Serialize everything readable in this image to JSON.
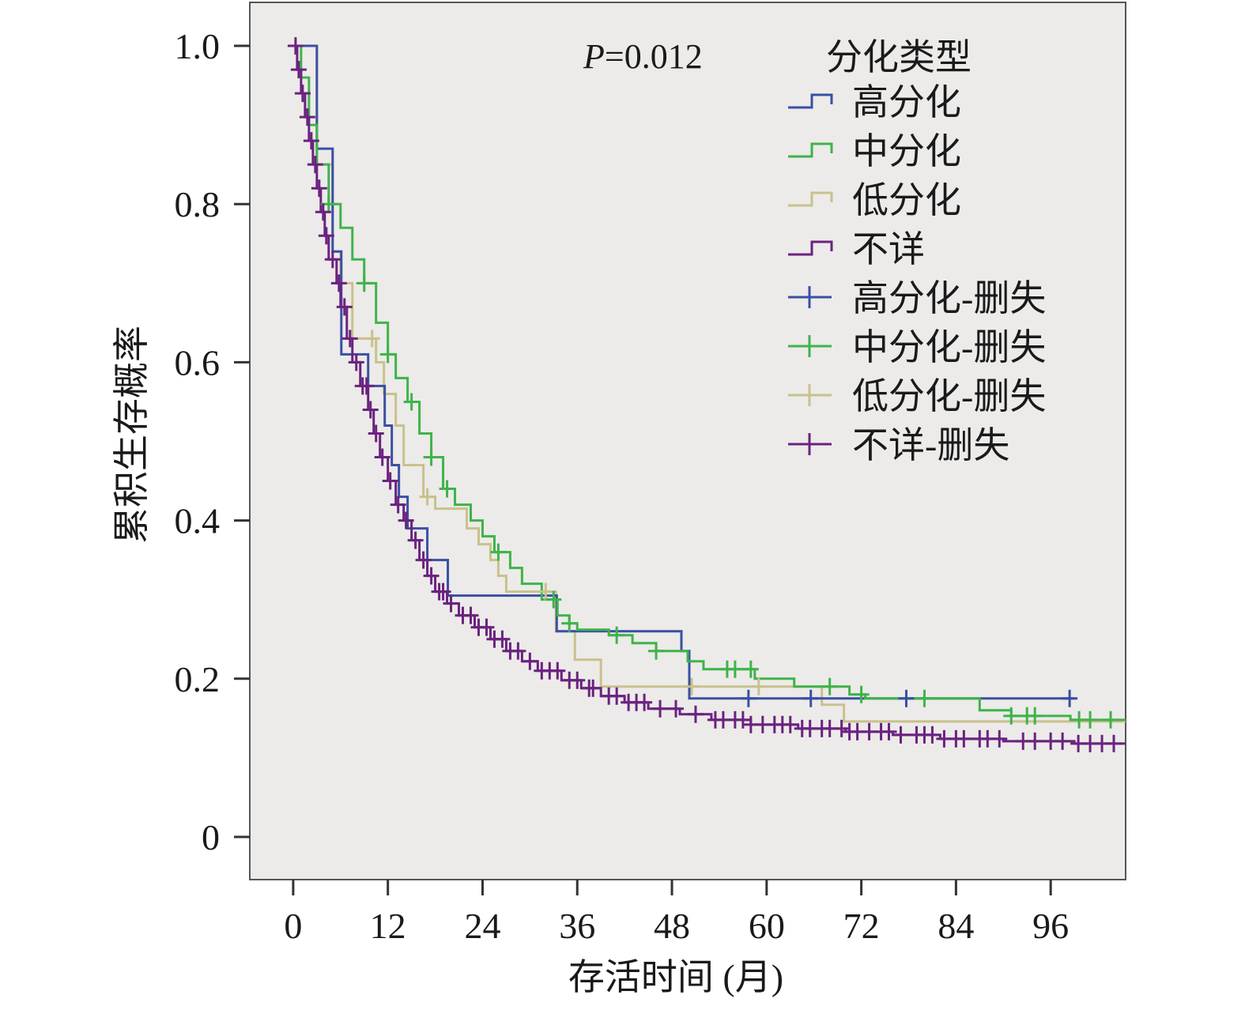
{
  "chart_data": {
    "type": "line",
    "subtype": "kaplan-meier step",
    "annotation": {
      "p_label": "P",
      "p_value": "=0.012"
    },
    "ylabel": "累积生存概率",
    "xlabel": "存活时间 (月)",
    "xlim": [
      -5.5,
      105.5
    ],
    "ylim": [
      -0.054,
      1.055
    ],
    "x_ticks": [
      0,
      12,
      24,
      36,
      48,
      60,
      72,
      84,
      96
    ],
    "x_tick_labels": [
      "0",
      "12",
      "24",
      "36",
      "48",
      "60",
      "72",
      "84",
      "96"
    ],
    "y_ticks": [
      0,
      0.2,
      0.4,
      0.6,
      0.8,
      1.0
    ],
    "y_tick_labels": [
      "0",
      "0.2",
      "0.4",
      "0.6",
      "0.8",
      "1.0"
    ],
    "grid": false,
    "background": "#ecebe9",
    "legend": {
      "title": "分化类型",
      "placement": "top-right",
      "entries": [
        "高分化",
        "中分化",
        "低分化",
        "不详",
        "高分化-删失",
        "中分化-删失",
        "低分化-删失",
        "不详-删失"
      ]
    },
    "series": [
      {
        "name": "高分化",
        "color": "#3a4fa3",
        "end": 99.1,
        "steps": [
          [
            0,
            1
          ],
          [
            3,
            0.87
          ],
          [
            5,
            0.74
          ],
          [
            6.1,
            0.61
          ],
          [
            9.5,
            0.57
          ],
          [
            11.6,
            0.52
          ],
          [
            12.5,
            0.47
          ],
          [
            13.4,
            0.43
          ],
          [
            14.5,
            0.39
          ],
          [
            17,
            0.35
          ],
          [
            19.6,
            0.305
          ],
          [
            33.4,
            0.26
          ],
          [
            49.2,
            0.235
          ],
          [
            50.2,
            0.175
          ]
        ],
        "censored": [
          57.7,
          65.6,
          77.7,
          98.4
        ]
      },
      {
        "name": "中分化",
        "color": "#3fb34a",
        "end": 105.5,
        "steps": [
          [
            0,
            1
          ],
          [
            1,
            0.96
          ],
          [
            2,
            0.9
          ],
          [
            3,
            0.85
          ],
          [
            4.5,
            0.8
          ],
          [
            6,
            0.77
          ],
          [
            7.5,
            0.73
          ],
          [
            9,
            0.7
          ],
          [
            10.5,
            0.65
          ],
          [
            12,
            0.61
          ],
          [
            13,
            0.58
          ],
          [
            14.5,
            0.55
          ],
          [
            16,
            0.51
          ],
          [
            17.5,
            0.48
          ],
          [
            19,
            0.44
          ],
          [
            20.5,
            0.42
          ],
          [
            22.5,
            0.4
          ],
          [
            24,
            0.38
          ],
          [
            25.5,
            0.36
          ],
          [
            27.5,
            0.34
          ],
          [
            29,
            0.32
          ],
          [
            31.5,
            0.3
          ],
          [
            33.5,
            0.28
          ],
          [
            35,
            0.27
          ],
          [
            36,
            0.262
          ],
          [
            40,
            0.255
          ],
          [
            43,
            0.245
          ],
          [
            46,
            0.235
          ],
          [
            50,
            0.222
          ],
          [
            52,
            0.212
          ],
          [
            58.5,
            0.2
          ],
          [
            63.5,
            0.19
          ],
          [
            70.5,
            0.18
          ],
          [
            72.5,
            0.175
          ],
          [
            87,
            0.16
          ],
          [
            91,
            0.153
          ],
          [
            98.5,
            0.148
          ]
        ],
        "censored": [
          4.5,
          9,
          12,
          15,
          17.5,
          19.5,
          26,
          33,
          35,
          41,
          46,
          55,
          56,
          58,
          68,
          72,
          80,
          91,
          93,
          94,
          99.6,
          101,
          103.6
        ]
      },
      {
        "name": "低分化",
        "color": "#c9c18c",
        "end": 105.5,
        "steps": [
          [
            0,
            1
          ],
          [
            3,
            0.85
          ],
          [
            5,
            0.74
          ],
          [
            6,
            0.7
          ],
          [
            7.5,
            0.63
          ],
          [
            10.5,
            0.6
          ],
          [
            11.5,
            0.56
          ],
          [
            13,
            0.52
          ],
          [
            14,
            0.47
          ],
          [
            16.5,
            0.43
          ],
          [
            18,
            0.415
          ],
          [
            22,
            0.39
          ],
          [
            23.5,
            0.37
          ],
          [
            25,
            0.35
          ],
          [
            26,
            0.33
          ],
          [
            27,
            0.31
          ],
          [
            33.3,
            0.26
          ],
          [
            35.7,
            0.224
          ],
          [
            39,
            0.19
          ],
          [
            67,
            0.167
          ],
          [
            69.8,
            0.146
          ]
        ],
        "censored": [
          10,
          17,
          32,
          50.5,
          59
        ]
      },
      {
        "name": "不详",
        "color": "#6b2280",
        "end": 105.5,
        "steps": [
          [
            0,
            1
          ],
          [
            0.5,
            0.97
          ],
          [
            1,
            0.94
          ],
          [
            1.5,
            0.91
          ],
          [
            2,
            0.88
          ],
          [
            2.5,
            0.85
          ],
          [
            3,
            0.82
          ],
          [
            3.5,
            0.79
          ],
          [
            4,
            0.76
          ],
          [
            4.5,
            0.73
          ],
          [
            5.5,
            0.7
          ],
          [
            6,
            0.67
          ],
          [
            6.8,
            0.63
          ],
          [
            7.5,
            0.6
          ],
          [
            8.5,
            0.57
          ],
          [
            9.5,
            0.54
          ],
          [
            10.2,
            0.51
          ],
          [
            11,
            0.48
          ],
          [
            12,
            0.45
          ],
          [
            13,
            0.42
          ],
          [
            14,
            0.4
          ],
          [
            15,
            0.375
          ],
          [
            16,
            0.35
          ],
          [
            17,
            0.33
          ],
          [
            18,
            0.31
          ],
          [
            19.5,
            0.295
          ],
          [
            21,
            0.28
          ],
          [
            23,
            0.265
          ],
          [
            25,
            0.25
          ],
          [
            27,
            0.235
          ],
          [
            29,
            0.222
          ],
          [
            31,
            0.21
          ],
          [
            34,
            0.198
          ],
          [
            36.5,
            0.188
          ],
          [
            39,
            0.178
          ],
          [
            42,
            0.17
          ],
          [
            45,
            0.162
          ],
          [
            49,
            0.155
          ],
          [
            53,
            0.148
          ],
          [
            58,
            0.142
          ],
          [
            64,
            0.137
          ],
          [
            70,
            0.133
          ],
          [
            76,
            0.129
          ],
          [
            82,
            0.124
          ],
          [
            90,
            0.121
          ],
          [
            99,
            0.118
          ]
        ],
        "censored": [
          0.3,
          0.7,
          1.2,
          1.8,
          2.3,
          2.8,
          3.3,
          3.8,
          4.2,
          5,
          5.8,
          6.5,
          7.2,
          8,
          8.8,
          9.3,
          9.8,
          10.5,
          11.3,
          12.3,
          13.3,
          14.3,
          15.5,
          16.5,
          17.5,
          18.5,
          19,
          20,
          21.5,
          22.5,
          23.5,
          24.5,
          25.5,
          26.5,
          27.5,
          28.5,
          30,
          31.5,
          32.5,
          33.5,
          35,
          36,
          37.5,
          38,
          40,
          41,
          42.5,
          43.5,
          44.5,
          46.5,
          48.5,
          51,
          53.5,
          54.5,
          56,
          57,
          58,
          59.5,
          61,
          62,
          63,
          64.5,
          65.5,
          67,
          68,
          69.5,
          70.5,
          71.5,
          73,
          74.5,
          75.5,
          77,
          79,
          80,
          81,
          82.5,
          84,
          85,
          87,
          88,
          89.5,
          92.5,
          94,
          96,
          97.5,
          99.5,
          101,
          102.5,
          104
        ]
      }
    ]
  }
}
